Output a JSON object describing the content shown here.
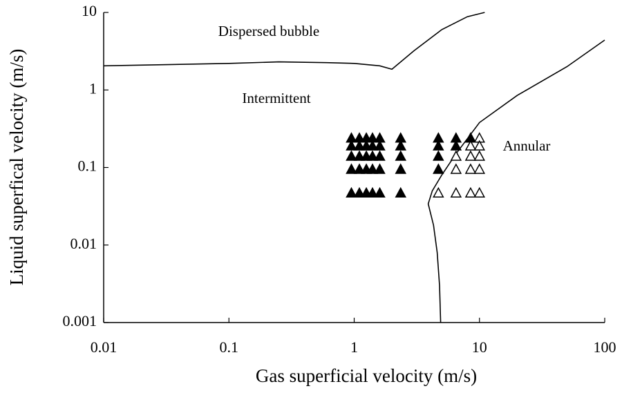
{
  "chart_data": {
    "type": "scatter",
    "xlabel": "Gas superficial velocity (m/s)",
    "ylabel": "Liquid superfical velocity (m/s)",
    "xscale": "log",
    "yscale": "log",
    "xlim": [
      0.01,
      100
    ],
    "ylim": [
      0.001,
      10
    ],
    "xticks": [
      0.01,
      0.1,
      1,
      10,
      100
    ],
    "yticks": [
      0.001,
      0.01,
      0.1,
      1,
      10
    ],
    "annotations": [
      "Dispersed bubble",
      "Intermittent",
      "Annular"
    ],
    "series": [
      {
        "marker": "triangle",
        "filled": true,
        "color": "#000000",
        "x": [
          0.95,
          0.95,
          0.95,
          0.95,
          0.95,
          1.1,
          1.1,
          1.1,
          1.1,
          1.1,
          1.25,
          1.25,
          1.25,
          1.25,
          1.25,
          1.4,
          1.4,
          1.4,
          1.4,
          1.4,
          1.6,
          1.6,
          1.6,
          1.6,
          1.6,
          2.35,
          2.35,
          2.35,
          2.35,
          2.35,
          4.7,
          4.7,
          4.7,
          4.7,
          6.5,
          6.5,
          8.5
        ],
        "y": [
          0.24,
          0.19,
          0.14,
          0.095,
          0.047,
          0.24,
          0.19,
          0.14,
          0.095,
          0.047,
          0.24,
          0.19,
          0.14,
          0.095,
          0.047,
          0.24,
          0.19,
          0.14,
          0.095,
          0.047,
          0.24,
          0.19,
          0.14,
          0.095,
          0.047,
          0.24,
          0.19,
          0.14,
          0.095,
          0.047,
          0.24,
          0.19,
          0.14,
          0.095,
          0.24,
          0.19,
          0.24
        ]
      },
      {
        "marker": "triangle",
        "filled": false,
        "color": "#000000",
        "x": [
          4.7,
          6.5,
          6.5,
          6.5,
          8.5,
          8.5,
          8.5,
          8.5,
          10,
          10,
          10,
          10,
          10
        ],
        "y": [
          0.047,
          0.14,
          0.095,
          0.047,
          0.19,
          0.14,
          0.095,
          0.047,
          0.24,
          0.19,
          0.14,
          0.095,
          0.047
        ]
      }
    ],
    "boundaries": [
      {
        "color": "#000000",
        "x": [
          0.01,
          0.1,
          0.25,
          0.6,
          1,
          1.6,
          2,
          3,
          5,
          8,
          11
        ],
        "y": [
          2.05,
          2.2,
          2.3,
          2.25,
          2.2,
          2.05,
          1.85,
          3.2,
          6,
          8.8,
          10
        ]
      },
      {
        "color": "#000000",
        "x": [
          4.9,
          4.8,
          4.6,
          4.3,
          3.9,
          4.2,
          5,
          6.5,
          10,
          20,
          50,
          100
        ],
        "y": [
          0.001,
          0.003,
          0.008,
          0.018,
          0.034,
          0.05,
          0.08,
          0.15,
          0.38,
          0.85,
          2,
          4.4
        ]
      }
    ]
  }
}
